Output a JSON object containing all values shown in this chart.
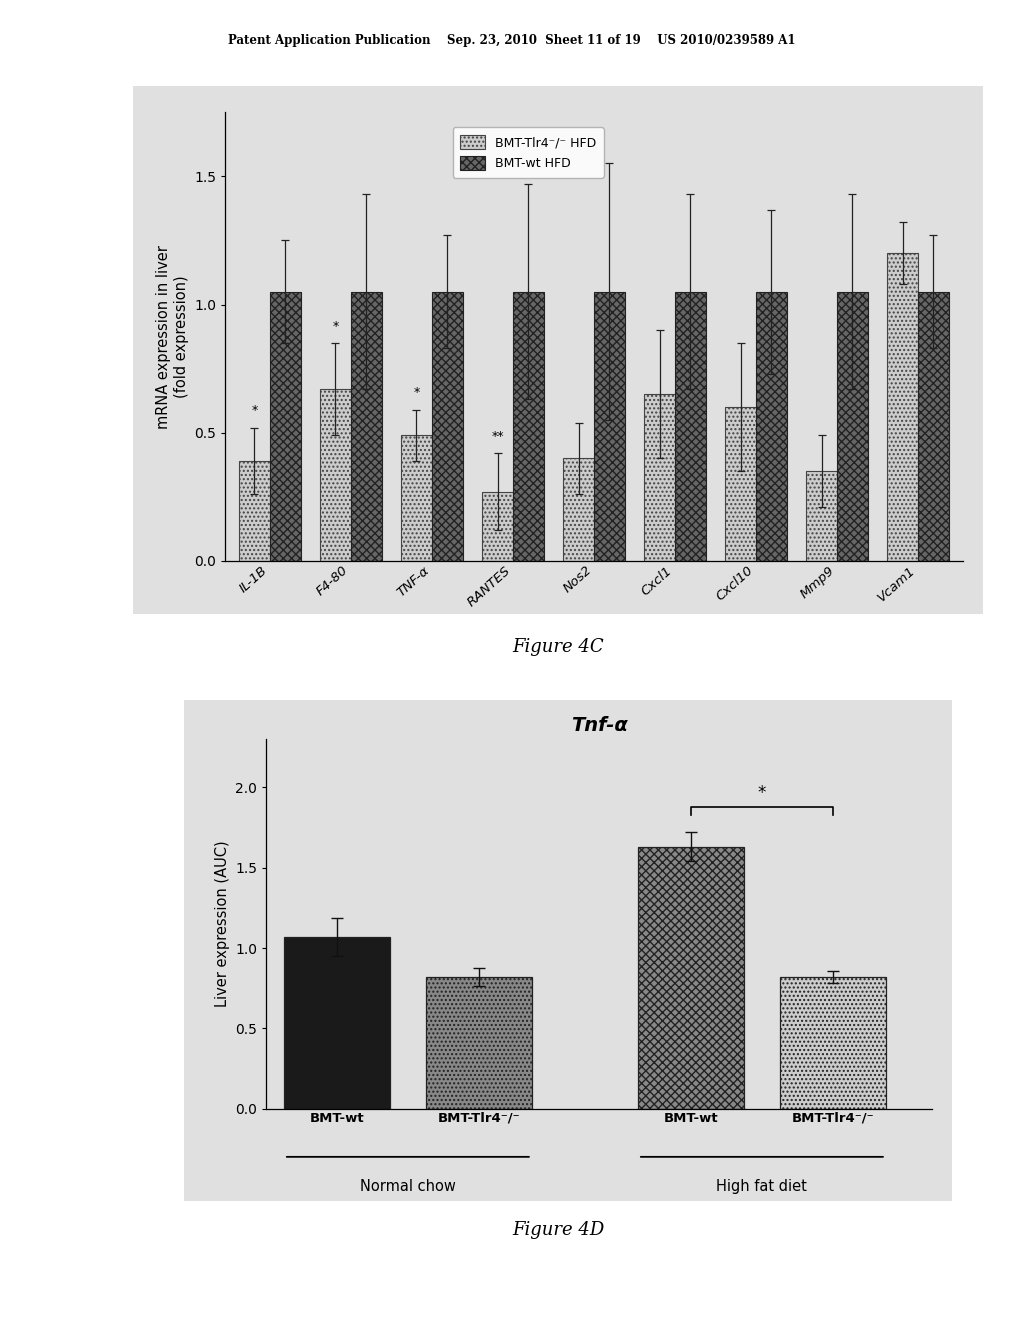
{
  "fig4c": {
    "categories": [
      "IL-1B",
      "F4-80",
      "TNF-α",
      "RANTES",
      "Nos2",
      "Cxcl1",
      "Cxcl10",
      "Mmp9",
      "Vcam1"
    ],
    "light_values": [
      0.39,
      0.67,
      0.49,
      0.27,
      0.4,
      0.65,
      0.6,
      0.35,
      1.2
    ],
    "dark_values": [
      1.05,
      1.05,
      1.05,
      1.05,
      1.05,
      1.05,
      1.05,
      1.05,
      1.05
    ],
    "light_errors": [
      0.13,
      0.18,
      0.1,
      0.15,
      0.14,
      0.25,
      0.25,
      0.14,
      0.12
    ],
    "dark_errors": [
      0.2,
      0.38,
      0.22,
      0.42,
      0.5,
      0.38,
      0.32,
      0.38,
      0.22
    ],
    "light_color": "#cccccc",
    "dark_color": "#666666",
    "ylabel": "mRNA expression in liver\n(fold expression)",
    "ylim": [
      0,
      1.75
    ],
    "yticks": [
      0,
      0.5,
      1.0,
      1.5
    ],
    "legend_labels": [
      "BMT-Tlr4⁻/⁻ HFD",
      "BMT-wt HFD"
    ],
    "figure_label": "Figure 4C",
    "sig_light": [
      "*",
      "*",
      "*",
      "**",
      "",
      "",
      "",
      "",
      ""
    ],
    "bar_width": 0.38
  },
  "fig4d": {
    "bar_labels": [
      "BMT-wt",
      "BMT-Tlr4⁻/⁻",
      "BMT-wt",
      "BMT-Tlr4⁻/⁻"
    ],
    "values": [
      1.07,
      0.82,
      1.63,
      0.82
    ],
    "errors": [
      0.12,
      0.055,
      0.09,
      0.038
    ],
    "colors": [
      "#1a1a1a",
      "#888888",
      "#888888",
      "#cccccc"
    ],
    "group_labels": [
      "Normal chow",
      "High fat diet"
    ],
    "ylabel": "Liver expression (AUC)",
    "title": "Tnf-α",
    "ylim": [
      0.0,
      2.3
    ],
    "yticks": [
      0.0,
      0.5,
      1.0,
      1.5,
      2.0
    ],
    "figure_label": "Figure 4D",
    "sig_text": "*"
  },
  "header_text": "Patent Application Publication    Sep. 23, 2010  Sheet 11 of 19    US 2010/0239589 A1",
  "page_bg": "#ffffff",
  "panel_bg": "#e0e0e0"
}
